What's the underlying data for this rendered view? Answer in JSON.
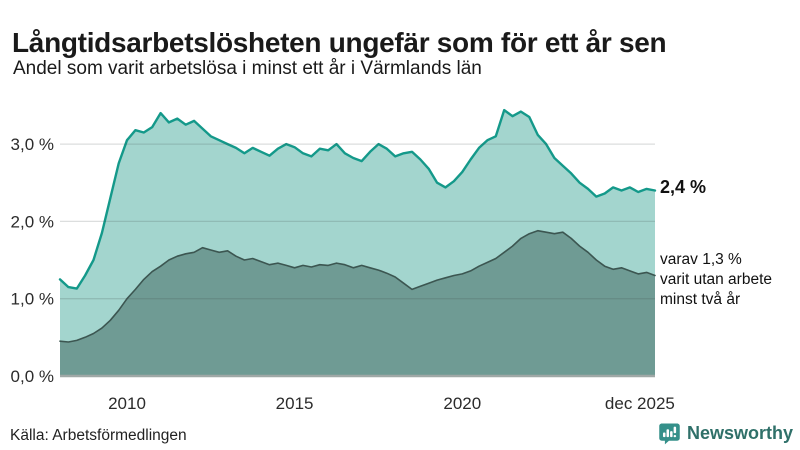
{
  "header": {
    "title": "Långtidsarbetslösheten ungefär som för ett år sen",
    "subtitle": "Andel som varit arbetslösa i minst ett år i Värmlands län"
  },
  "chart_data": {
    "type": "area",
    "title": "Långtidsarbetslösheten ungefär som för ett år sen",
    "subtitle": "Andel som varit arbetslösa i minst ett år i Värmlands län",
    "unit": "%",
    "x_start": 2008.0,
    "x_step": 0.25,
    "xlim": [
      2008.0,
      2025.75
    ],
    "ylim": [
      0,
      3.57
    ],
    "grid": "horizontal",
    "legend_position": "none",
    "yticks": [
      {
        "value": 0,
        "label": "0,0 %"
      },
      {
        "value": 1,
        "label": "1,0 %"
      },
      {
        "value": 2,
        "label": "2,0 %"
      },
      {
        "value": 3,
        "label": "3,0 %"
      }
    ],
    "xticks": [
      {
        "value": 2010,
        "label": "2010"
      },
      {
        "value": 2015,
        "label": "2015"
      },
      {
        "value": 2020,
        "label": "2020"
      },
      {
        "value": 2025.3,
        "label": "dec 2025"
      }
    ],
    "series": [
      {
        "name": "Andel som varit arbetslösa minst ett år",
        "latest_value": "2,4 %",
        "color": "#14998a",
        "fill": "#a3d5ce",
        "values": [
          1.25,
          1.15,
          1.13,
          1.3,
          1.5,
          1.85,
          2.3,
          2.75,
          3.05,
          3.18,
          3.15,
          3.22,
          3.4,
          3.28,
          3.33,
          3.25,
          3.3,
          3.2,
          3.1,
          3.05,
          3.0,
          2.95,
          2.88,
          2.95,
          2.9,
          2.85,
          2.94,
          3.0,
          2.96,
          2.88,
          2.84,
          2.94,
          2.92,
          3.0,
          2.88,
          2.82,
          2.78,
          2.9,
          3.0,
          2.94,
          2.84,
          2.88,
          2.9,
          2.8,
          2.68,
          2.5,
          2.44,
          2.52,
          2.64,
          2.8,
          2.95,
          3.05,
          3.1,
          3.44,
          3.36,
          3.42,
          3.35,
          3.12,
          3.0,
          2.82,
          2.72,
          2.62,
          2.5,
          2.42,
          2.32,
          2.36,
          2.44,
          2.4,
          2.44,
          2.38,
          2.42,
          2.4
        ]
      },
      {
        "name": "varav arbetslösa minst två år",
        "latest_value": "1,3 %",
        "color": "#3c5651",
        "fill": "#6f9b94",
        "values": [
          0.45,
          0.44,
          0.46,
          0.5,
          0.55,
          0.62,
          0.72,
          0.85,
          1.0,
          1.12,
          1.25,
          1.35,
          1.42,
          1.5,
          1.55,
          1.58,
          1.6,
          1.66,
          1.63,
          1.6,
          1.62,
          1.55,
          1.5,
          1.52,
          1.48,
          1.44,
          1.46,
          1.43,
          1.4,
          1.43,
          1.41,
          1.44,
          1.43,
          1.46,
          1.44,
          1.4,
          1.43,
          1.4,
          1.37,
          1.33,
          1.28,
          1.2,
          1.12,
          1.16,
          1.2,
          1.24,
          1.27,
          1.3,
          1.32,
          1.36,
          1.42,
          1.47,
          1.52,
          1.6,
          1.68,
          1.78,
          1.84,
          1.88,
          1.86,
          1.84,
          1.86,
          1.78,
          1.68,
          1.6,
          1.5,
          1.42,
          1.38,
          1.4,
          1.36,
          1.32,
          1.34,
          1.3
        ]
      }
    ],
    "annotations": {
      "latest_total": "2,4 %",
      "secondary": "varav 1,3 %\nvarit utan arbete\nminst två år"
    }
  },
  "footer": {
    "source": "Källa: Arbetsförmedlingen",
    "brand": "Newsworthy"
  },
  "colors": {
    "accent_teal": "#14998a",
    "light_fill": "#a3d5ce",
    "dark_fill": "#6f9b94",
    "brand_teal": "#35908a"
  }
}
